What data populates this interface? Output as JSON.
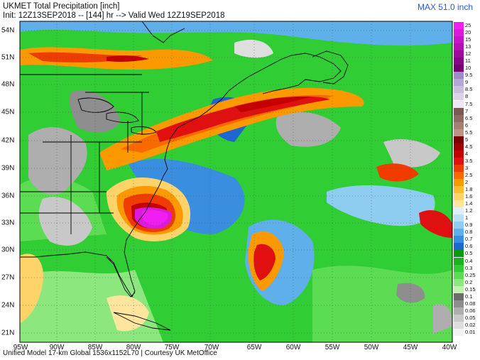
{
  "header": {
    "title": "UKMET Total Precipitation [inch]",
    "subtitle": "Init: 12Z13SEP2018 -- [144] hr --> Valid Wed 12Z19SEP2018",
    "max_label": "MAX 51.0 inch",
    "max_color": "#2a5bd7"
  },
  "footer": {
    "text": "Unified Model 17-km Global 1536x1152L70 | Courtesy UK MetOffice"
  },
  "map": {
    "lat_labels": [
      "54N",
      "51N",
      "48N",
      "45N",
      "42N",
      "39N",
      "36N",
      "33N",
      "30N",
      "27N",
      "24N",
      "21N"
    ],
    "lon_labels": [
      "95W",
      "90W",
      "85W",
      "80W",
      "75W",
      "70W",
      "65W",
      "60W",
      "55W",
      "50W",
      "45W",
      "40W"
    ]
  },
  "legend": [
    {
      "label": "25",
      "color": "#f01ef0"
    },
    {
      "label": "20",
      "color": "#dd19dd"
    },
    {
      "label": "15",
      "color": "#c814c8"
    },
    {
      "label": "13",
      "color": "#b30fb3"
    },
    {
      "label": "12",
      "color": "#9d0a9d"
    },
    {
      "label": "11",
      "color": "#870587"
    },
    {
      "label": "10",
      "color": "#720072"
    },
    {
      "label": "9.5",
      "color": "#9c8cc8"
    },
    {
      "label": "9",
      "color": "#b4a6d6"
    },
    {
      "label": "8.5",
      "color": "#c7bee0"
    },
    {
      "label": "8",
      "color": "#dad3ea"
    },
    {
      "label": "7.5",
      "color": "#ece9f4"
    },
    {
      "label": "7",
      "color": "#7a5a52"
    },
    {
      "label": "6.5",
      "color": "#8f6c62"
    },
    {
      "label": "6",
      "color": "#a58074"
    },
    {
      "label": "5.5",
      "color": "#bb9487"
    },
    {
      "label": "5",
      "color": "#7a0000"
    },
    {
      "label": "4.5",
      "color": "#a00000"
    },
    {
      "label": "4",
      "color": "#c40000"
    },
    {
      "label": "3.5",
      "color": "#e01010"
    },
    {
      "label": "3",
      "color": "#f03c00"
    },
    {
      "label": "2.5",
      "color": "#f86a00"
    },
    {
      "label": "2",
      "color": "#fb9a00"
    },
    {
      "label": "1.8",
      "color": "#fdbd2c"
    },
    {
      "label": "1.6",
      "color": "#fed46a"
    },
    {
      "label": "1.4",
      "color": "#ffe59e"
    },
    {
      "label": "1.2",
      "color": "#dff0fa"
    },
    {
      "label": "1",
      "color": "#b9e1f6"
    },
    {
      "label": "0.9",
      "color": "#8ecdf0"
    },
    {
      "label": "0.8",
      "color": "#5fb0ea"
    },
    {
      "label": "0.7",
      "color": "#3a8ee0"
    },
    {
      "label": "0.6",
      "color": "#1e66d0"
    },
    {
      "label": "0.5",
      "color": "#0a9a10"
    },
    {
      "label": "0.4",
      "color": "#18b420"
    },
    {
      "label": "0.3",
      "color": "#30ce34"
    },
    {
      "label": "0.25",
      "color": "#5cdc52"
    },
    {
      "label": "0.2",
      "color": "#8ce87e"
    },
    {
      "label": "0.15",
      "color": "#bff2b0"
    },
    {
      "label": "0.1",
      "color": "#6c6c6c"
    },
    {
      "label": "0.08",
      "color": "#8e8e8e"
    },
    {
      "label": "0.06",
      "color": "#aeaeae"
    },
    {
      "label": "0.05",
      "color": "#c8c8c8"
    },
    {
      "label": "0.02",
      "color": "#dedede"
    },
    {
      "label": "0.01",
      "color": "#f2f2f2"
    }
  ]
}
